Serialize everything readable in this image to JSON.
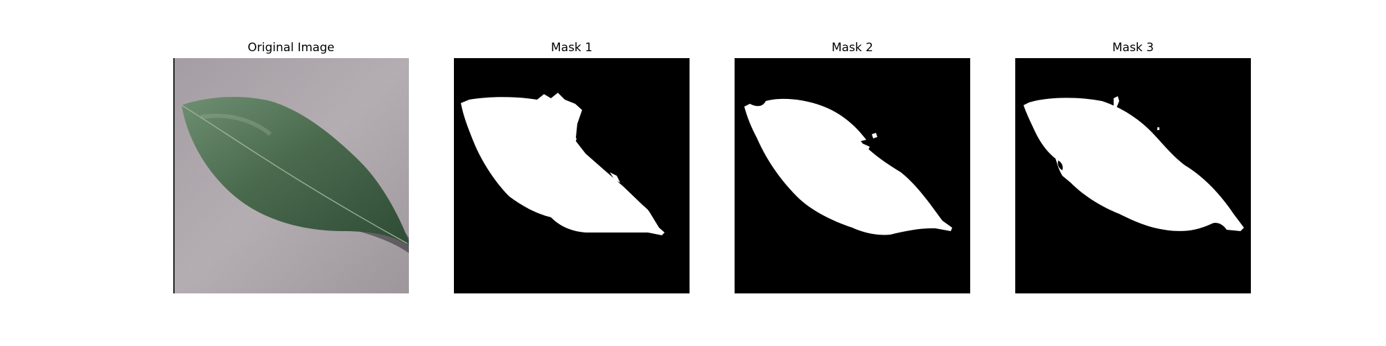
{
  "figure": {
    "panels": [
      {
        "title": "Original Image",
        "kind": "photo"
      },
      {
        "title": "Mask 1",
        "kind": "mask"
      },
      {
        "title": "Mask 2",
        "kind": "mask"
      },
      {
        "title": "Mask 3",
        "kind": "mask"
      }
    ]
  },
  "colors": {
    "background_surface": "#a69ea3",
    "leaf_dark": "#34513a",
    "leaf_light": "#6f8f72",
    "mask_background": "#000000",
    "mask_foreground": "#ffffff"
  }
}
